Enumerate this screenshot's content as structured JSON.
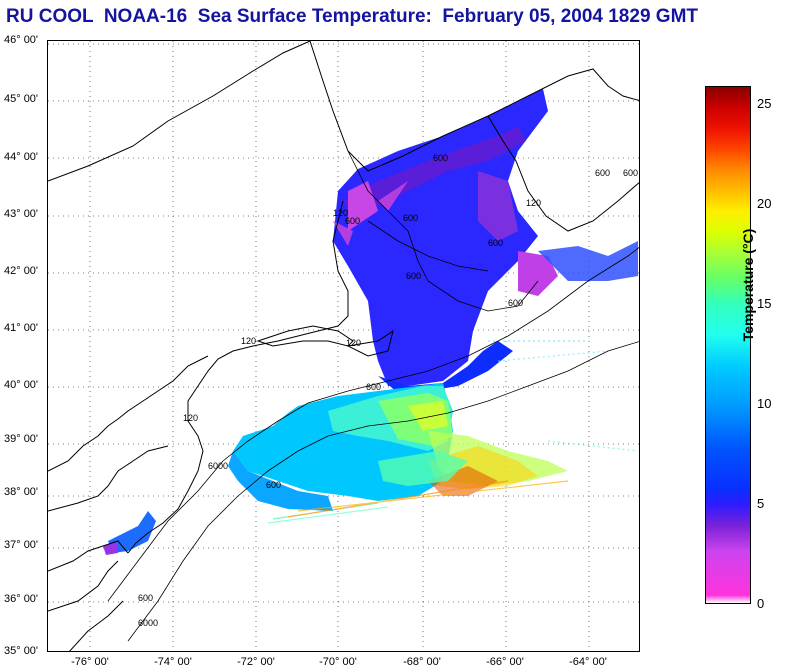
{
  "title": "RU COOL  NOAA-16  Sea Surface Temperature:  February 05, 2004 1829 GMT",
  "map": {
    "lat_labels": [
      "46° 00'",
      "45° 00'",
      "44° 00'",
      "43° 00'",
      "42° 00'",
      "41° 00'",
      "40° 00'",
      "39° 00'",
      "38° 00'",
      "37° 00'",
      "36° 00'",
      "35° 00'"
    ],
    "lon_labels": [
      "-76° 00'",
      "-74° 00'",
      "-72° 00'",
      "-70° 00'",
      "-68° 00'",
      "-66° 00'",
      "-64° 00'"
    ],
    "contour_labels": [
      "120",
      "600",
      "6000",
      "120",
      "600",
      "6000",
      "120",
      "600",
      "600",
      "600",
      "120",
      "600",
      "600",
      "120",
      "600",
      "600",
      "600",
      "600"
    ]
  },
  "colorbar": {
    "label": "Temperature (°C)",
    "ticks": [
      "25",
      "20",
      "15",
      "10",
      "5",
      "0"
    ]
  }
}
